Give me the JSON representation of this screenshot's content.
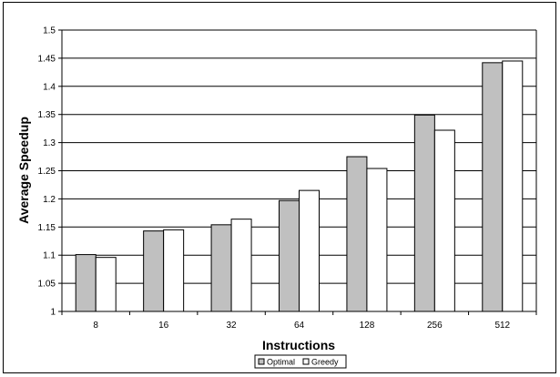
{
  "chart_data": {
    "type": "bar",
    "categories": [
      "8",
      "16",
      "32",
      "64",
      "128",
      "256",
      "512"
    ],
    "series": [
      {
        "name": "Optimal",
        "values": [
          1.101,
          1.143,
          1.154,
          1.197,
          1.275,
          1.349,
          1.442
        ],
        "color": "#c0c0c0"
      },
      {
        "name": "Greedy",
        "values": [
          1.096,
          1.145,
          1.164,
          1.215,
          1.254,
          1.322,
          1.445
        ],
        "color": "#ffffff"
      }
    ],
    "title": "",
    "xlabel": "Instructions",
    "ylabel": "Average Speedup",
    "ylim": [
      1,
      1.5
    ],
    "yticks": [
      "1",
      "1.05",
      "1.1",
      "1.15",
      "1.2",
      "1.25",
      "1.3",
      "1.35",
      "1.4",
      "1.45",
      "1.5"
    ],
    "grid": true,
    "legend_position": "bottom"
  }
}
